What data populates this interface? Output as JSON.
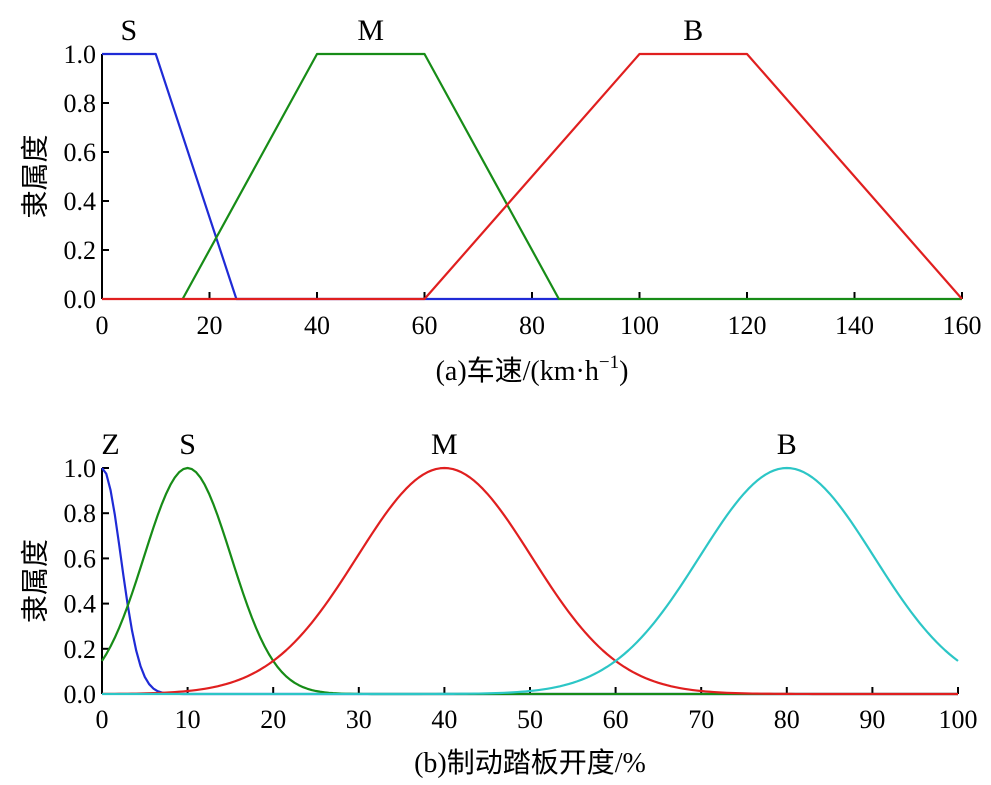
{
  "colors": {
    "blue": "#1f2bd6",
    "green": "#178c17",
    "red": "#e01f1f",
    "cyan": "#2cc6c6",
    "axis": "#000000"
  },
  "chart_data": [
    {
      "type": "line",
      "title": "",
      "xlabel": "(a)车速/(km·h",
      "xlabel_sup": "−1",
      "xlabel_end": ")",
      "ylabel": "隶属度",
      "xlim": [
        0,
        160
      ],
      "ylim": [
        0,
        1
      ],
      "xticks": [
        0,
        20,
        40,
        60,
        80,
        100,
        120,
        140,
        160
      ],
      "yticks": [
        0.0,
        0.2,
        0.4,
        0.6,
        0.8,
        1.0
      ],
      "xtick_labels": [
        "0",
        "20",
        "40",
        "60",
        "80",
        "100",
        "120",
        "140",
        "160"
      ],
      "ytick_labels": [
        "0.0",
        "0.2",
        "0.4",
        "0.6",
        "0.8",
        "1.0"
      ],
      "grid": false,
      "series": [
        {
          "name": "S",
          "color": "#1f2bd6",
          "shape": "trapezoid",
          "points": [
            [
              0,
              1
            ],
            [
              10,
              1
            ],
            [
              25,
              0
            ],
            [
              85,
              0
            ]
          ]
        },
        {
          "name": "M",
          "color": "#178c17",
          "shape": "trapezoid",
          "points": [
            [
              15,
              0
            ],
            [
              40,
              1
            ],
            [
              60,
              1
            ],
            [
              85,
              0
            ],
            [
              160,
              0
            ]
          ]
        },
        {
          "name": "B",
          "color": "#e01f1f",
          "shape": "trapezoid",
          "points": [
            [
              0,
              0
            ],
            [
              60,
              0
            ],
            [
              100,
              1
            ],
            [
              120,
              1
            ],
            [
              160,
              0
            ]
          ]
        }
      ],
      "mf_labels": [
        {
          "text": "S",
          "x": 5
        },
        {
          "text": "M",
          "x": 50
        },
        {
          "text": "B",
          "x": 110
        }
      ]
    },
    {
      "type": "line",
      "title": "",
      "xlabel": "(b)制动踏板开度/%",
      "ylabel": "隶属度",
      "xlim": [
        0,
        100
      ],
      "ylim": [
        0,
        1
      ],
      "xticks": [
        0,
        10,
        20,
        30,
        40,
        50,
        60,
        70,
        80,
        90,
        100
      ],
      "yticks": [
        0.0,
        0.2,
        0.4,
        0.6,
        0.8,
        1.0
      ],
      "xtick_labels": [
        "0",
        "10",
        "20",
        "30",
        "40",
        "50",
        "60",
        "70",
        "80",
        "90",
        "100"
      ],
      "ytick_labels": [
        "0.0",
        "0.2",
        "0.4",
        "0.6",
        "0.8",
        "1.0"
      ],
      "grid": false,
      "series": [
        {
          "name": "Z",
          "color": "#1f2bd6",
          "shape": "gaussian",
          "center": 0,
          "sigma": 2.2
        },
        {
          "name": "S",
          "color": "#178c17",
          "shape": "gaussian",
          "center": 10,
          "sigma": 5.1
        },
        {
          "name": "M",
          "color": "#e01f1f",
          "shape": "gaussian",
          "center": 40,
          "sigma": 10.2
        },
        {
          "name": "B",
          "color": "#2cc6c6",
          "shape": "gaussian",
          "center": 80,
          "sigma": 10.2
        }
      ],
      "mf_labels": [
        {
          "text": "Z",
          "x": 1
        },
        {
          "text": "S",
          "x": 10
        },
        {
          "text": "M",
          "x": 40
        },
        {
          "text": "B",
          "x": 80
        }
      ]
    }
  ]
}
